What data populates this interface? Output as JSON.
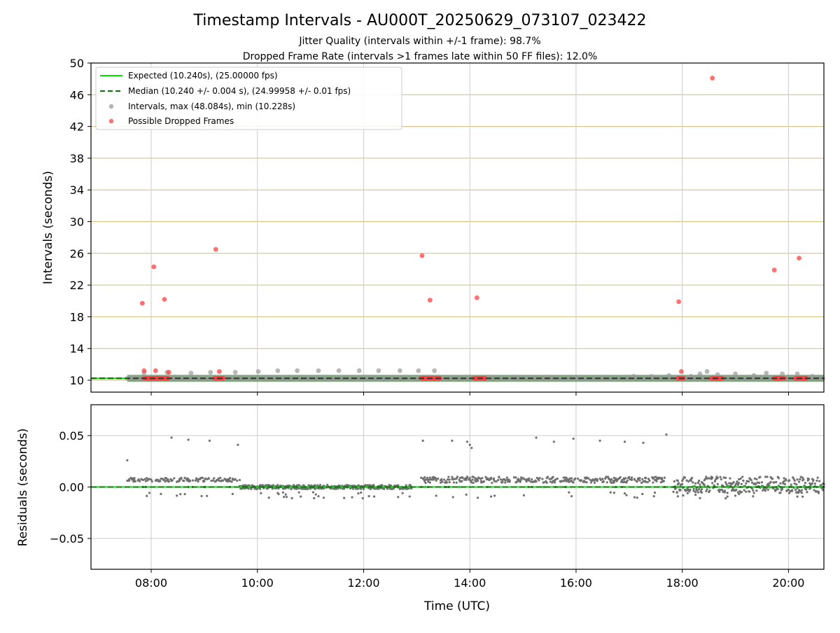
{
  "chart_data": [
    {
      "type": "scatter",
      "title": "Timestamp Intervals - AU000T_20250629_073107_023422",
      "subtitle_lines": [
        "Jitter Quality (intervals within +/-1 frame): 98.7%",
        "Dropped Frame Rate (intervals >1 frames late within 50 FF files): 12.0%"
      ],
      "xlabel": "",
      "ylabel": "Intervals (seconds)",
      "xlim": [
        "06:52",
        "20:40"
      ],
      "ylim": [
        8.5,
        50
      ],
      "x_ticks": [
        "08:00",
        "10:00",
        "12:00",
        "14:00",
        "16:00",
        "18:00",
        "20:00"
      ],
      "y_ticks": [
        10,
        14,
        18,
        22,
        26,
        30,
        34,
        38,
        42,
        46,
        50
      ],
      "grid": true,
      "legend_position": "upper-left",
      "legend": [
        "Expected (10.240s), (25.00000 fps)",
        "Median (10.240 +/- 0.004 s), (24.99958 +/- 0.01 fps)",
        "Intervals, max (48.084s), min (10.228s)",
        "Possible Dropped Frames"
      ],
      "expected_interval": 10.24,
      "median_interval": 10.24,
      "series": [
        {
          "name": "Intervals, max (48.084s), min (10.228s)",
          "color": "#9a9a9a",
          "baseline_range": [
            "07:33",
            "20:40"
          ],
          "baseline_value": 10.24,
          "x": [
            "07:52",
            "08:18",
            "08:45",
            "09:07",
            "09:35",
            "10:01",
            "10:23",
            "10:45",
            "11:09",
            "11:32",
            "11:55",
            "12:17",
            "12:41",
            "13:02",
            "13:20",
            "14:20",
            "14:50",
            "15:30",
            "16:00",
            "16:30",
            "17:05",
            "17:25",
            "17:45",
            "18:10",
            "18:20",
            "18:28",
            "18:40",
            "19:00",
            "19:21",
            "19:35",
            "19:53",
            "20:10",
            "20:27"
          ],
          "y": [
            10.9,
            11.0,
            10.9,
            11.0,
            11.0,
            11.1,
            11.2,
            11.2,
            11.2,
            11.2,
            11.2,
            11.2,
            11.2,
            11.2,
            11.2,
            10.4,
            10.4,
            10.4,
            10.4,
            10.4,
            10.5,
            10.5,
            10.6,
            10.5,
            10.8,
            11.1,
            10.7,
            10.8,
            10.6,
            10.9,
            10.8,
            10.8,
            10.5
          ]
        },
        {
          "name": "Possible Dropped Frames",
          "color": "#ff4040",
          "x": [
            "07:50",
            "07:52",
            "08:03",
            "08:05",
            "08:15",
            "08:20",
            "09:13",
            "09:17",
            "13:06",
            "13:15",
            "14:08",
            "17:56",
            "17:59",
            "18:34",
            "19:44",
            "20:12"
          ],
          "y": [
            19.7,
            11.2,
            24.3,
            11.2,
            20.2,
            11.0,
            26.5,
            11.1,
            25.7,
            20.1,
            20.4,
            19.9,
            11.1,
            48.1,
            23.9,
            25.4
          ],
          "clusters": [
            [
              "07:52",
              "08:20"
            ],
            [
              "09:12",
              "09:22"
            ],
            [
              "13:05",
              "13:27"
            ],
            [
              "14:05",
              "14:18"
            ],
            [
              "17:55",
              "18:02"
            ],
            [
              "18:33",
              "18:45"
            ],
            [
              "19:44",
              "19:55"
            ],
            [
              "20:08",
              "20:20"
            ]
          ]
        }
      ]
    },
    {
      "type": "scatter",
      "xlabel": "Time (UTC)",
      "ylabel": "Residuals (seconds)",
      "xlim": [
        "06:52",
        "20:40"
      ],
      "ylim": [
        -0.08,
        0.08
      ],
      "x_ticks": [
        "08:00",
        "10:00",
        "12:00",
        "14:00",
        "16:00",
        "18:00",
        "20:00"
      ],
      "y_ticks": [
        "0.05",
        "0.00",
        "−0.05"
      ],
      "y_tick_values": [
        0.05,
        0.0,
        -0.05
      ],
      "grid": true,
      "reference_line": 0.0,
      "series": [
        {
          "color": "#707070",
          "segments": [
            {
              "x": [
                "07:33",
                "09:40"
              ],
              "level": 0.007,
              "spread": 0.002
            },
            {
              "x": [
                "09:40",
                "12:55"
              ],
              "level": 0.0,
              "spread": 0.002
            },
            {
              "x": [
                "13:05",
                "17:40"
              ],
              "level": 0.007,
              "spread": 0.003
            },
            {
              "x": [
                "17:50",
                "20:40"
              ],
              "level": 0.002,
              "spread": 0.008
            }
          ],
          "outliers_x": [
            "07:33",
            "08:23",
            "08:42",
            "09:06",
            "09:38",
            "13:07",
            "13:40",
            "13:57",
            "14:00",
            "14:02",
            "15:15",
            "15:35",
            "15:57",
            "16:27",
            "16:55",
            "17:16",
            "17:42"
          ],
          "outliers_y": [
            0.026,
            0.048,
            0.046,
            0.045,
            0.041,
            0.045,
            0.045,
            0.044,
            0.041,
            0.038,
            0.048,
            0.044,
            0.047,
            0.045,
            0.044,
            0.043,
            0.051
          ]
        }
      ]
    }
  ],
  "colors": {
    "expected_line": "#00e600",
    "median_line": "#007a00",
    "intervals": "#9a9a9a",
    "dropped": "#ff4040",
    "hgrid_upper": "#d4bc7a",
    "grid": "#cccccc",
    "residuals": "#707070"
  }
}
